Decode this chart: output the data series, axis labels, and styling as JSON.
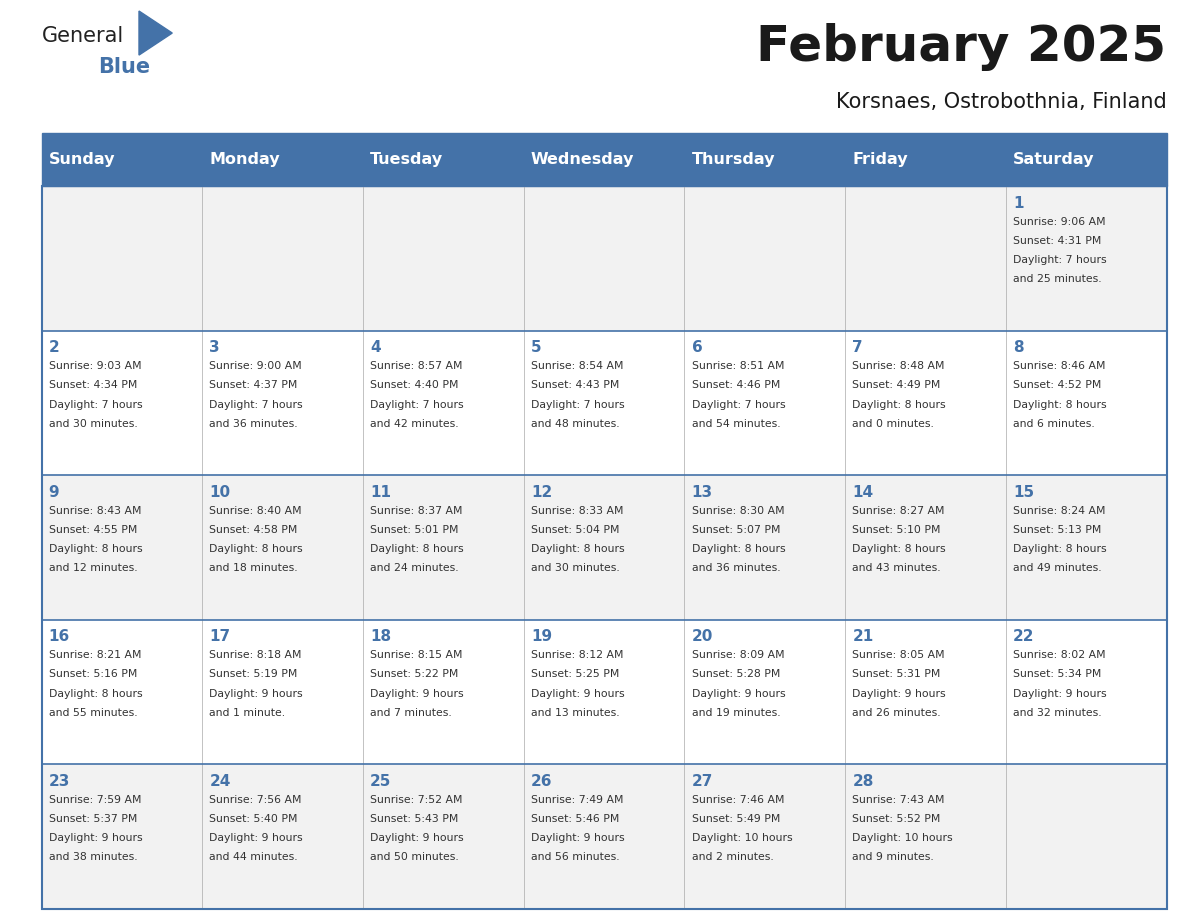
{
  "title": "February 2025",
  "subtitle": "Korsnaes, Ostrobothnia, Finland",
  "days_of_week": [
    "Sunday",
    "Monday",
    "Tuesday",
    "Wednesday",
    "Thursday",
    "Friday",
    "Saturday"
  ],
  "header_bg": "#4472a8",
  "header_text": "#ffffff",
  "row_bg_odd": "#f2f2f2",
  "row_bg_even": "#ffffff",
  "border_color": "#4472a8",
  "day_number_color": "#4472a8",
  "text_color": "#333333",
  "title_color": "#1a1a1a",
  "calendar_data": [
    [
      null,
      null,
      null,
      null,
      null,
      null,
      {
        "day": 1,
        "sunrise": "9:06 AM",
        "sunset": "4:31 PM",
        "daylight_line1": "7 hours",
        "daylight_line2": "and 25 minutes."
      }
    ],
    [
      {
        "day": 2,
        "sunrise": "9:03 AM",
        "sunset": "4:34 PM",
        "daylight_line1": "7 hours",
        "daylight_line2": "and 30 minutes."
      },
      {
        "day": 3,
        "sunrise": "9:00 AM",
        "sunset": "4:37 PM",
        "daylight_line1": "7 hours",
        "daylight_line2": "and 36 minutes."
      },
      {
        "day": 4,
        "sunrise": "8:57 AM",
        "sunset": "4:40 PM",
        "daylight_line1": "7 hours",
        "daylight_line2": "and 42 minutes."
      },
      {
        "day": 5,
        "sunrise": "8:54 AM",
        "sunset": "4:43 PM",
        "daylight_line1": "7 hours",
        "daylight_line2": "and 48 minutes."
      },
      {
        "day": 6,
        "sunrise": "8:51 AM",
        "sunset": "4:46 PM",
        "daylight_line1": "7 hours",
        "daylight_line2": "and 54 minutes."
      },
      {
        "day": 7,
        "sunrise": "8:48 AM",
        "sunset": "4:49 PM",
        "daylight_line1": "8 hours",
        "daylight_line2": "and 0 minutes."
      },
      {
        "day": 8,
        "sunrise": "8:46 AM",
        "sunset": "4:52 PM",
        "daylight_line1": "8 hours",
        "daylight_line2": "and 6 minutes."
      }
    ],
    [
      {
        "day": 9,
        "sunrise": "8:43 AM",
        "sunset": "4:55 PM",
        "daylight_line1": "8 hours",
        "daylight_line2": "and 12 minutes."
      },
      {
        "day": 10,
        "sunrise": "8:40 AM",
        "sunset": "4:58 PM",
        "daylight_line1": "8 hours",
        "daylight_line2": "and 18 minutes."
      },
      {
        "day": 11,
        "sunrise": "8:37 AM",
        "sunset": "5:01 PM",
        "daylight_line1": "8 hours",
        "daylight_line2": "and 24 minutes."
      },
      {
        "day": 12,
        "sunrise": "8:33 AM",
        "sunset": "5:04 PM",
        "daylight_line1": "8 hours",
        "daylight_line2": "and 30 minutes."
      },
      {
        "day": 13,
        "sunrise": "8:30 AM",
        "sunset": "5:07 PM",
        "daylight_line1": "8 hours",
        "daylight_line2": "and 36 minutes."
      },
      {
        "day": 14,
        "sunrise": "8:27 AM",
        "sunset": "5:10 PM",
        "daylight_line1": "8 hours",
        "daylight_line2": "and 43 minutes."
      },
      {
        "day": 15,
        "sunrise": "8:24 AM",
        "sunset": "5:13 PM",
        "daylight_line1": "8 hours",
        "daylight_line2": "and 49 minutes."
      }
    ],
    [
      {
        "day": 16,
        "sunrise": "8:21 AM",
        "sunset": "5:16 PM",
        "daylight_line1": "8 hours",
        "daylight_line2": "and 55 minutes."
      },
      {
        "day": 17,
        "sunrise": "8:18 AM",
        "sunset": "5:19 PM",
        "daylight_line1": "9 hours",
        "daylight_line2": "and 1 minute."
      },
      {
        "day": 18,
        "sunrise": "8:15 AM",
        "sunset": "5:22 PM",
        "daylight_line1": "9 hours",
        "daylight_line2": "and 7 minutes."
      },
      {
        "day": 19,
        "sunrise": "8:12 AM",
        "sunset": "5:25 PM",
        "daylight_line1": "9 hours",
        "daylight_line2": "and 13 minutes."
      },
      {
        "day": 20,
        "sunrise": "8:09 AM",
        "sunset": "5:28 PM",
        "daylight_line1": "9 hours",
        "daylight_line2": "and 19 minutes."
      },
      {
        "day": 21,
        "sunrise": "8:05 AM",
        "sunset": "5:31 PM",
        "daylight_line1": "9 hours",
        "daylight_line2": "and 26 minutes."
      },
      {
        "day": 22,
        "sunrise": "8:02 AM",
        "sunset": "5:34 PM",
        "daylight_line1": "9 hours",
        "daylight_line2": "and 32 minutes."
      }
    ],
    [
      {
        "day": 23,
        "sunrise": "7:59 AM",
        "sunset": "5:37 PM",
        "daylight_line1": "9 hours",
        "daylight_line2": "and 38 minutes."
      },
      {
        "day": 24,
        "sunrise": "7:56 AM",
        "sunset": "5:40 PM",
        "daylight_line1": "9 hours",
        "daylight_line2": "and 44 minutes."
      },
      {
        "day": 25,
        "sunrise": "7:52 AM",
        "sunset": "5:43 PM",
        "daylight_line1": "9 hours",
        "daylight_line2": "and 50 minutes."
      },
      {
        "day": 26,
        "sunrise": "7:49 AM",
        "sunset": "5:46 PM",
        "daylight_line1": "9 hours",
        "daylight_line2": "and 56 minutes."
      },
      {
        "day": 27,
        "sunrise": "7:46 AM",
        "sunset": "5:49 PM",
        "daylight_line1": "10 hours",
        "daylight_line2": "and 2 minutes."
      },
      {
        "day": 28,
        "sunrise": "7:43 AM",
        "sunset": "5:52 PM",
        "daylight_line1": "10 hours",
        "daylight_line2": "and 9 minutes."
      },
      null
    ]
  ]
}
